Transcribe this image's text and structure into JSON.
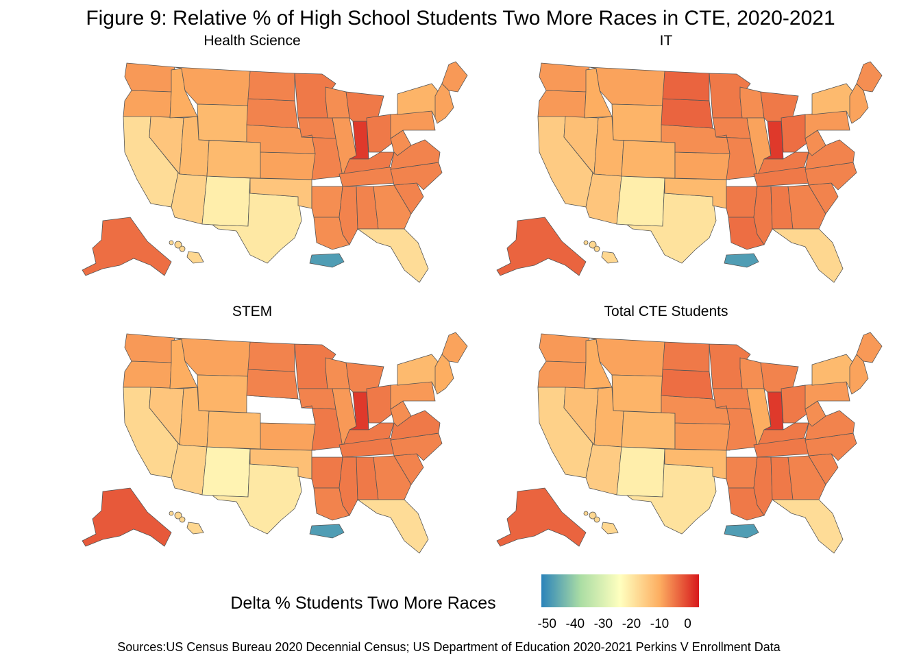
{
  "title": "Figure 9: Relative % of High School Students Two More Races in CTE, 2020-2021",
  "source": "Sources:US Census Bureau 2020 Decennial Census; US Department of Education 2020-2021 Perkins V Enrollment Data",
  "legend": {
    "title": "Delta % Students Two More Races",
    "ticks": [
      "-50",
      "-40",
      "-30",
      "-20",
      "-10",
      "0"
    ],
    "range": [
      -52,
      4
    ],
    "colors": [
      "#2b83ba",
      "#abdda4",
      "#ffffbf",
      "#fdae61",
      "#d7191c"
    ]
  },
  "panels": [
    {
      "title": "Health  Science",
      "values": {
        "WA": -8,
        "OR": -9,
        "CA": -18,
        "NV": -14,
        "ID": -10,
        "MT": -9,
        "WY": -12,
        "UT": -12,
        "AZ": -16,
        "NM": -21,
        "CO": -12,
        "TX": -20,
        "OK": -14,
        "KS": -9,
        "NE": -8,
        "SD": -6,
        "ND": -6,
        "MN": -5,
        "IA": -6,
        "MO": -6,
        "WI": -7,
        "IL": -8,
        "MI": -5,
        "IN": 1,
        "OH": -5,
        "KY": -5,
        "TN": -6,
        "MS": -6,
        "AL": -6,
        "GA": -7,
        "FL": -18,
        "SC": -6,
        "NC": -6,
        "VA": -6,
        "WV": -7,
        "PA": -8,
        "NY": -11,
        "ME": -8,
        "NE_US": -9,
        "LA": -7,
        "AR": -7,
        "AK": -4,
        "HI": -17,
        "PR": -48
      }
    },
    {
      "title": "IT",
      "values": {
        "WA": -8,
        "OR": -8,
        "CA": -15,
        "NV": -13,
        "ID": -10,
        "MT": -9,
        "WY": -11,
        "UT": -11,
        "AZ": -14,
        "NM": -21,
        "CO": -11,
        "TX": -19,
        "OK": -12,
        "KS": -9,
        "NE": -7,
        "SD": -3,
        "ND": -3,
        "MN": -5,
        "IA": -6,
        "MO": -6,
        "WI": -7,
        "IL": -9,
        "MI": -5,
        "IN": 1,
        "OH": -4,
        "KY": -5,
        "TN": -5,
        "MS": -5,
        "AL": -5,
        "GA": -6,
        "FL": -17,
        "SC": -6,
        "NC": -6,
        "VA": -6,
        "WV": -7,
        "PA": -8,
        "NY": -12,
        "ME": -7,
        "NE_US": -9,
        "LA": -4,
        "AR": -5,
        "AK": -3,
        "HI": -17,
        "PR": -48
      }
    },
    {
      "title": "STEM",
      "values": {
        "WA": -8,
        "OR": -9,
        "CA": -17,
        "NV": -14,
        "ID": -10,
        "MT": -9,
        "WY": -11,
        "UT": -12,
        "AZ": -16,
        "NM": -22,
        "CO": -12,
        "TX": -20,
        "OK": -13,
        "KS": -9,
        "NE": null,
        "SD": -6,
        "ND": -6,
        "MN": -5,
        "IA": -6,
        "MO": -5,
        "WI": -7,
        "IL": -8,
        "MI": -6,
        "IN": 1,
        "OH": -5,
        "KY": -5,
        "TN": -5,
        "MS": -5,
        "AL": -5,
        "GA": -6,
        "FL": -18,
        "SC": -6,
        "NC": -6,
        "VA": -5,
        "WV": -7,
        "PA": -8,
        "NY": -12,
        "ME": -9,
        "NE_US": -10,
        "LA": -6,
        "AR": -5,
        "AK": -2,
        "HI": -17,
        "PR": -48
      }
    },
    {
      "title": "Total  CTE  Students",
      "values": {
        "WA": -8,
        "OR": -8,
        "CA": -16,
        "NV": -13,
        "ID": -10,
        "MT": -9,
        "WY": -11,
        "UT": -11,
        "AZ": -15,
        "NM": -21,
        "CO": -12,
        "TX": -19,
        "OK": -12,
        "KS": -8,
        "NE": -7,
        "SD": -4,
        "ND": -5,
        "MN": -5,
        "IA": -6,
        "MO": -6,
        "WI": -7,
        "IL": -10,
        "MI": -6,
        "IN": 1,
        "OH": -5,
        "KY": -5,
        "TN": -5,
        "MS": -5,
        "AL": -5,
        "GA": -6,
        "FL": -18,
        "SC": -6,
        "NC": -6,
        "VA": -6,
        "WV": -7,
        "PA": -8,
        "NY": -12,
        "ME": -8,
        "NE_US": -9,
        "LA": -5,
        "AR": -6,
        "AK": -3,
        "HI": -17,
        "PR": -48
      }
    }
  ]
}
